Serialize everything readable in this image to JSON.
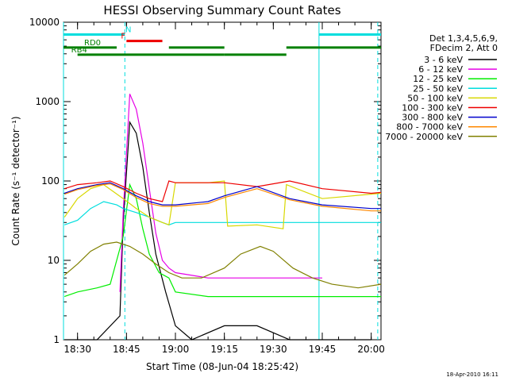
{
  "chart_data": {
    "type": "line",
    "title": "HESSI Observing Summary Count Rates",
    "xlabel": "Start Time (08-Jun-04 18:25:42)",
    "ylabel": "Count Rate (s⁻¹ detector⁻¹)",
    "xscale": "time (minutes after 18:25:42)",
    "yscale": "log",
    "xlim": [
      "18:25:42",
      "20:03"
    ],
    "ylim": [
      1,
      10000
    ],
    "x_ticks": [
      "18:30",
      "18:45",
      "19:00",
      "19:15",
      "19:30",
      "19:45",
      "20:00"
    ],
    "y_ticks": [
      "1",
      "10",
      "100",
      "1000",
      "10000"
    ],
    "legend_placement": "right",
    "legend_header": [
      "Det 1,3,4,5,6,9,",
      "FDecim 2, Att 0"
    ],
    "timestamp": "18-Apr-2010 16:11",
    "series": [
      {
        "name": "3 - 6 keV",
        "color": "#000000",
        "x": [
          "18:26",
          "18:36",
          "18:43",
          "18:44",
          "18:46",
          "18:48",
          "18:50",
          "18:52",
          "18:54",
          "18:57",
          "19:00",
          "19:05",
          "19:15",
          "19:25",
          "19:35",
          "19:45",
          "20:00"
        ],
        "y": [
          1,
          1,
          2,
          30,
          550,
          400,
          150,
          40,
          12,
          4,
          1.5,
          1,
          1.5,
          1.5,
          1,
          1,
          1
        ]
      },
      {
        "name": "6 - 12 keV",
        "color": "#e600e6",
        "x": [
          "18:43",
          "18:44",
          "18:46",
          "18:48",
          "18:50",
          "18:52",
          "18:54",
          "18:56",
          "18:58",
          "19:00",
          "19:10",
          "19:20",
          "19:30",
          "19:40",
          "19:45"
        ],
        "y": [
          4,
          40,
          1250,
          800,
          300,
          80,
          22,
          10,
          8,
          7,
          6,
          6,
          6,
          6,
          6
        ]
      },
      {
        "name": "12 - 25 keV",
        "color": "#00ee00",
        "x": [
          "18:26",
          "18:30",
          "18:36",
          "18:40",
          "18:44",
          "18:46",
          "18:48",
          "18:50",
          "18:52",
          "18:55",
          "18:58",
          "19:00",
          "19:10",
          "19:20",
          "19:30",
          "19:40",
          "20:00",
          "20:03"
        ],
        "y": [
          3.5,
          4,
          4.5,
          5,
          20,
          90,
          60,
          25,
          12,
          7,
          6,
          4,
          3.5,
          3.5,
          3.5,
          3.5,
          3.5,
          3.5
        ]
      },
      {
        "name": "25 - 50 keV",
        "color": "#00dede",
        "x": [
          "18:26",
          "18:30",
          "18:34",
          "18:38",
          "18:42",
          "18:44",
          "18:48",
          "18:52",
          "18:56",
          "18:58",
          "19:00",
          "19:10",
          "19:15",
          "19:25",
          "19:35",
          "19:45",
          "20:00",
          "20:03"
        ],
        "y": [
          28,
          32,
          45,
          55,
          50,
          45,
          40,
          35,
          30,
          28,
          30,
          30,
          30,
          30,
          30,
          30,
          30,
          30
        ]
      },
      {
        "name": "50 - 100 keV",
        "color": "#d8d800",
        "x": [
          "18:26",
          "18:30",
          "18:34",
          "18:38",
          "18:44",
          "18:48",
          "18:52",
          "18:56",
          "18:58",
          "19:00",
          "19:10",
          "19:15",
          "19:16",
          "19:25",
          "19:33",
          "19:34",
          "19:45",
          "20:03"
        ],
        "y": [
          35,
          60,
          80,
          90,
          60,
          45,
          35,
          30,
          28,
          95,
          95,
          100,
          27,
          28,
          25,
          90,
          60,
          70
        ]
      },
      {
        "name": "100 - 300 keV",
        "color": "#ee0000",
        "x": [
          "18:26",
          "18:30",
          "18:36",
          "18:40",
          "18:44",
          "18:48",
          "18:52",
          "18:56",
          "18:58",
          "19:00",
          "19:10",
          "19:15",
          "19:25",
          "19:35",
          "19:45",
          "20:00",
          "20:03"
        ],
        "y": [
          80,
          90,
          95,
          100,
          85,
          70,
          60,
          55,
          100,
          95,
          95,
          95,
          85,
          100,
          80,
          70,
          72
        ]
      },
      {
        "name": "300 - 800 keV",
        "color": "#0000cc",
        "x": [
          "18:26",
          "18:30",
          "18:36",
          "18:40",
          "18:44",
          "18:48",
          "18:52",
          "18:56",
          "19:00",
          "19:10",
          "19:15",
          "19:25",
          "19:35",
          "19:45",
          "20:00",
          "20:03"
        ],
        "y": [
          70,
          80,
          90,
          95,
          80,
          65,
          55,
          50,
          50,
          55,
          65,
          85,
          60,
          50,
          45,
          45
        ]
      },
      {
        "name": "800 - 7000 keV",
        "color": "#ff8800",
        "x": [
          "18:26",
          "18:30",
          "18:36",
          "18:40",
          "18:44",
          "18:48",
          "18:52",
          "18:56",
          "19:00",
          "19:10",
          "19:15",
          "19:25",
          "19:35",
          "19:45",
          "20:00",
          "20:03"
        ],
        "y": [
          68,
          78,
          88,
          92,
          78,
          62,
          52,
          48,
          48,
          52,
          62,
          80,
          58,
          48,
          42,
          42
        ]
      },
      {
        "name": "7000 - 20000 keV",
        "color": "#808000",
        "x": [
          "18:26",
          "18:30",
          "18:34",
          "18:38",
          "18:42",
          "18:46",
          "18:50",
          "18:54",
          "18:58",
          "19:02",
          "19:08",
          "19:15",
          "19:20",
          "19:26",
          "19:30",
          "19:36",
          "19:42",
          "19:48",
          "19:56",
          "20:03"
        ],
        "y": [
          6.5,
          9,
          13,
          16,
          17,
          15,
          12,
          9,
          7,
          6,
          6,
          8,
          12,
          15,
          13,
          8,
          6,
          5,
          4.5,
          5
        ]
      }
    ],
    "flag_bars": [
      {
        "label": "N",
        "color": "#00dede",
        "level": 7000,
        "segments": [
          [
            "18:25:42",
            "18:44:30"
          ],
          [
            "19:44",
            "20:03"
          ]
        ]
      },
      {
        "label": "F",
        "color": "#ee0000",
        "level": 5800,
        "segments": [
          [
            "18:45",
            "18:56"
          ]
        ]
      },
      {
        "label": "RD0",
        "color": "#008000",
        "level": 4800,
        "segments": [
          [
            "18:25:42",
            "18:42"
          ],
          [
            "18:58",
            "19:15"
          ],
          [
            "19:34",
            "20:03"
          ]
        ]
      },
      {
        "label": "RB4",
        "color": "#008000",
        "level": 3900,
        "segments": [
          [
            "18:30",
            "19:15"
          ],
          [
            "19:15",
            "19:34"
          ]
        ]
      }
    ],
    "vertical_markers": [
      {
        "time": "18:25:42",
        "color": "#00dede",
        "style": "solid"
      },
      {
        "time": "18:44:30",
        "color": "#00dede",
        "style": "dashed"
      },
      {
        "time": "19:44",
        "color": "#00dede",
        "style": "solid"
      },
      {
        "time": "20:02",
        "color": "#00dede",
        "style": "dashed"
      }
    ]
  }
}
